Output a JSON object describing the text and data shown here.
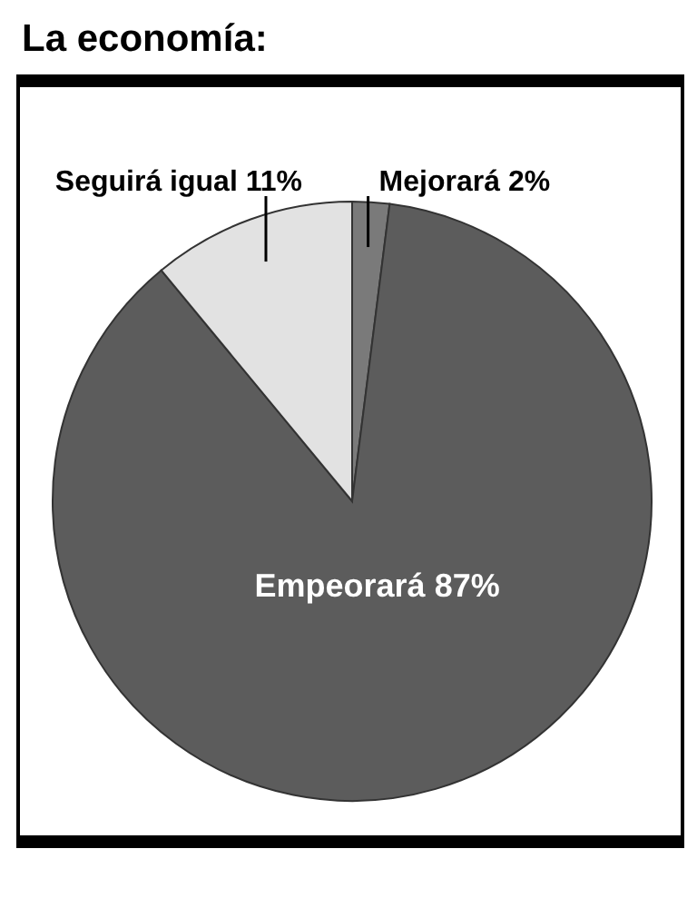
{
  "chart_data": {
    "type": "pie",
    "title": "La economía:",
    "categories": [
      "Mejorará",
      "Empeorará",
      "Seguirá igual"
    ],
    "values": [
      2,
      87,
      11
    ],
    "colors": [
      "#7a7a7a",
      "#5c5c5c",
      "#e2e2e2"
    ],
    "value_labels": [
      "2%",
      "87%",
      "11%"
    ]
  }
}
